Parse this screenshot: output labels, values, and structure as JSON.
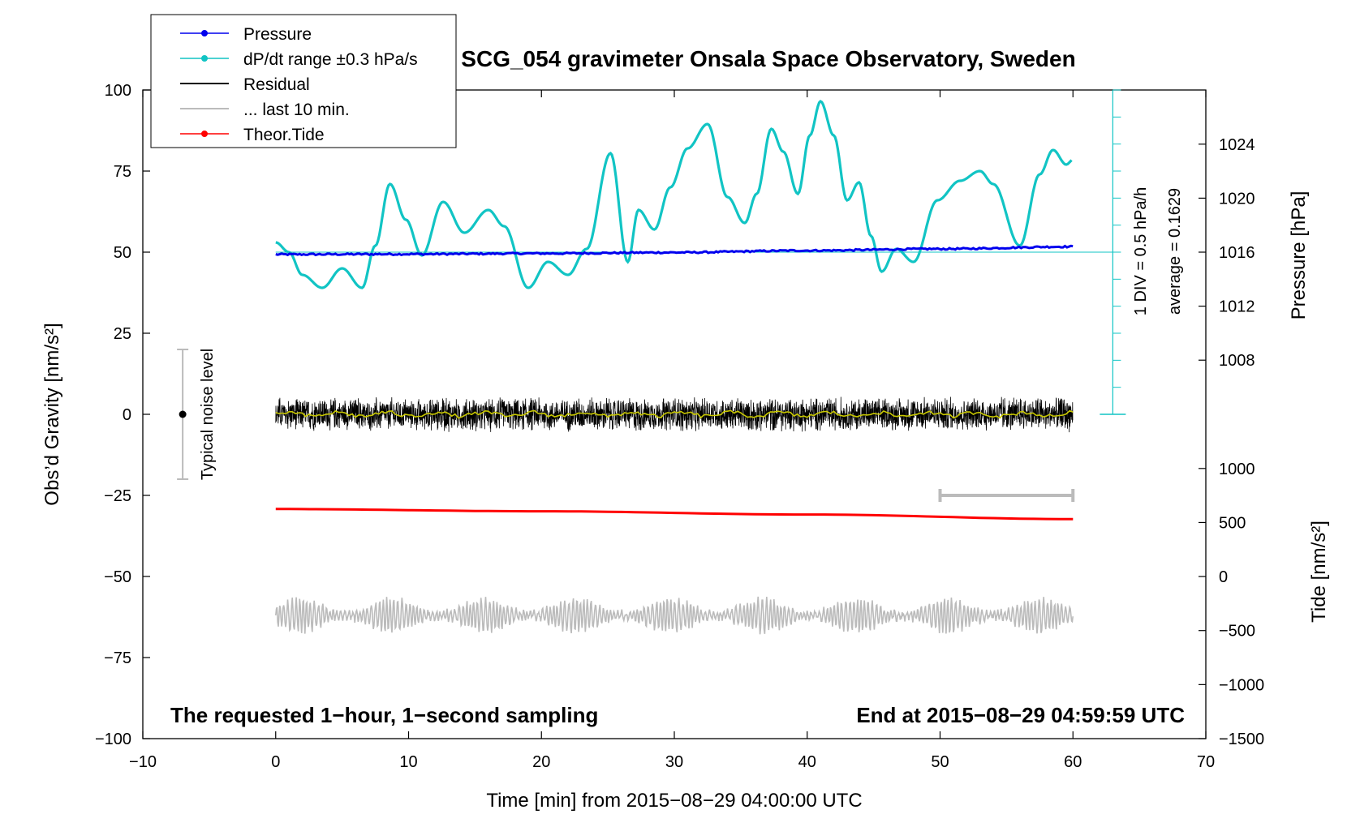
{
  "chart_data": {
    "type": "line",
    "title": "SCG_054 gravimeter Onsala Space Observatory, Sweden",
    "xlabel": "Time [min] from 2015−08−29 04:00:00 UTC",
    "ylabel_left": "Obs’d Gravity [nm/s²]",
    "ylabel_pressure": "Pressure [hPa]",
    "ylabel_tide": "Tide [nm/s²]",
    "xlim": [
      -10,
      70
    ],
    "ylim": [
      -100,
      100
    ],
    "x_ticks": [
      -10,
      0,
      10,
      20,
      30,
      40,
      50,
      60,
      70
    ],
    "x_tick_labels": [
      "−10",
      "0",
      "10",
      "20",
      "30",
      "40",
      "50",
      "60",
      "70"
    ],
    "y_ticks": [
      100,
      75,
      50,
      25,
      0,
      -25,
      -50,
      -75,
      -100
    ],
    "y_tick_labels": [
      "100",
      "75",
      "50",
      "25",
      "0",
      "−25",
      "−50",
      "−75",
      "−100"
    ],
    "pressure_ticks": [
      1024,
      1020,
      1016,
      1012,
      1008
    ],
    "pressure_tick_labels": [
      "1024",
      "1020",
      "1016",
      "1012",
      "1008"
    ],
    "pressure_axis_map": {
      "hpa": [
        1016,
        1024
      ],
      "gravity": [
        50,
        83.3
      ]
    },
    "tide_ticks": [
      1000,
      500,
      0,
      -500,
      -1000,
      -1500
    ],
    "tide_tick_labels": [
      "1000",
      "500",
      "0",
      "−500",
      "−1000",
      "−1500"
    ],
    "tide_axis_map": {
      "tide": [
        1000,
        -1500
      ],
      "gravity": [
        -16.7,
        -100
      ]
    },
    "legend": {
      "placement": "top-left",
      "entries": [
        {
          "label": "Pressure",
          "color": "#0000ee",
          "marker": true
        },
        {
          "label": "dP/dt range ±0.3 hPa/s",
          "color": "#11c4c4",
          "marker": true
        },
        {
          "label": "Residual",
          "color": "#000000",
          "marker": false
        },
        {
          "label": "... last 10 min.",
          "color": "#bbbbbb",
          "marker": false
        },
        {
          "label": "Theor.Tide",
          "color": "#ff0000",
          "marker": true
        }
      ]
    },
    "series": [
      {
        "name": "Pressure",
        "color": "#0000ee",
        "x": [
          0,
          10,
          20,
          30,
          40,
          50,
          60
        ],
        "y": [
          49.3,
          49.4,
          49.6,
          49.9,
          50.5,
          51.0,
          51.7
        ]
      },
      {
        "name": "dP/dt",
        "color": "#11c4c4",
        "x": [
          0,
          1,
          2,
          3.5,
          5,
          6.5,
          7.5,
          8.6,
          9.8,
          11,
          12.6,
          14.2,
          16,
          17.2,
          19,
          20.5,
          22,
          23.4,
          25.2,
          26.5,
          27.3,
          28.5,
          29.7,
          31,
          32.5,
          34,
          35.3,
          36.2,
          37.3,
          38.2,
          39.3,
          40.2,
          41,
          42,
          43,
          43.9,
          44.8,
          45.6,
          46.7,
          48,
          49.8,
          51.5,
          53,
          54,
          56,
          57.5,
          58.5,
          59.5,
          60
        ],
        "y": [
          53,
          50,
          43,
          39,
          45,
          39,
          52,
          71,
          60,
          49,
          65.5,
          56,
          63,
          58,
          39,
          47,
          43,
          51,
          80.5,
          47,
          63,
          57,
          70,
          82,
          89.5,
          67,
          59,
          68,
          88,
          81,
          68,
          86,
          96.5,
          86,
          66,
          71.5,
          55,
          44,
          51,
          47,
          66,
          72,
          75,
          71,
          52,
          74,
          81.5,
          77,
          78.5
        ]
      },
      {
        "name": "Residual",
        "color": "#000000",
        "x_range": [
          0,
          60
        ],
        "center": 0,
        "spread": 4
      },
      {
        "name": "Residual smoothed",
        "color": "#c8c800",
        "x_range": [
          0,
          60
        ],
        "center": 0
      },
      {
        "name": "Theor.Tide",
        "color": "#ff0000",
        "x": [
          0,
          20,
          40,
          60
        ],
        "y": [
          -29.2,
          -29.9,
          -30.9,
          -32.3
        ]
      },
      {
        "name": "... last 10 min.",
        "color": "#bbbbbb",
        "x_range": [
          0,
          60
        ],
        "center": -62
      }
    ],
    "noise_indicator": {
      "label": "Typical noise level",
      "x": -7,
      "center": 0,
      "range": [
        -20,
        20
      ]
    },
    "ten_min_bar": {
      "x_range": [
        50,
        60
      ],
      "y": -25
    },
    "pressure_scale_label": "1 DIV = 0.5 hPa/h",
    "average_label": "average = 0.1629",
    "pressure_ruler": {
      "x": 63,
      "y_range": [
        0,
        100
      ]
    },
    "footer_left": "The requested 1−hour, 1−second sampling",
    "footer_right": "End at 2015−08−29 04:59:59 UTC"
  }
}
